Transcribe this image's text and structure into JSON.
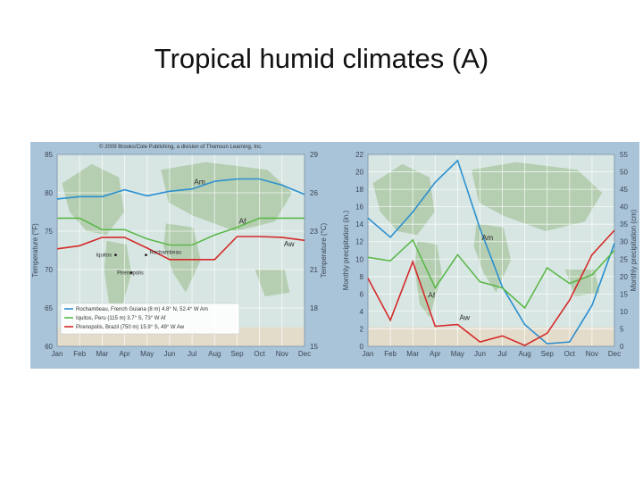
{
  "title": "Tropical humid climates (A)",
  "colors": {
    "am": "#2a8fd0",
    "af": "#5cb84a",
    "aw": "#d42a2a",
    "plot_bg": "#d7e6e3",
    "land": "#a9c6a0",
    "frame": "#a9c3d8"
  },
  "chart_data": [
    {
      "type": "line",
      "copyright": "© 2009 Brooks/Cole Publishing, a division of Thomson Learning, Inc.",
      "categories": [
        "Jan",
        "Feb",
        "Mar",
        "Apr",
        "May",
        "Jun",
        "Jul",
        "Aug",
        "Sep",
        "Oct",
        "Nov",
        "Dec"
      ],
      "ylabel": "Temperature (°F)",
      "y2label": "Temperature (°C)",
      "ylim": [
        60,
        85
      ],
      "yticks": [
        85,
        80,
        75,
        70,
        65,
        60
      ],
      "y2ticks": [
        29,
        26,
        23,
        21,
        18,
        15
      ],
      "grid": true,
      "legend_position": "bottom-left",
      "legend": [
        "Rochambeau, French Guiana (8 m) 4.8° N, 52.4° W Am",
        "Iquitos, Peru (115 m) 3.7° S, 73° W Af",
        "Pirenopolis, Brazil (750 m) 15.9° S, 49° W Aw"
      ],
      "place_labels": [
        "Rochambeau",
        "Iquitos",
        "Pirenopolis"
      ],
      "series": [
        {
          "name": "Am",
          "values": [
            79.2,
            79.5,
            79.5,
            80.4,
            79.6,
            80.2,
            80.5,
            81.5,
            81.8,
            81.8,
            81.0,
            79.8
          ]
        },
        {
          "name": "Af",
          "values": [
            76.7,
            76.7,
            75.2,
            75.2,
            74.0,
            73.2,
            73.2,
            74.5,
            75.5,
            76.7,
            76.7,
            76.7
          ]
        },
        {
          "name": "Aw",
          "values": [
            72.7,
            73.1,
            74.2,
            74.2,
            72.8,
            71.3,
            71.3,
            71.3,
            74.3,
            74.3,
            74.2,
            73.8
          ]
        }
      ]
    },
    {
      "type": "line",
      "categories": [
        "Jan",
        "Feb",
        "Mar",
        "Apr",
        "May",
        "Jun",
        "Jul",
        "Aug",
        "Sep",
        "Oct",
        "Nov",
        "Dec"
      ],
      "ylabel": "Monthly precipitation (in.)",
      "y2label": "Monthly precipitation (cm)",
      "ylim": [
        0,
        22
      ],
      "yticks": [
        22,
        20,
        18,
        16,
        14,
        12,
        10,
        8,
        6,
        4,
        2,
        0
      ],
      "y2ticks": [
        55,
        50,
        45,
        40,
        35,
        30,
        25,
        20,
        15,
        10,
        5,
        0
      ],
      "grid": true,
      "series": [
        {
          "name": "Am",
          "values": [
            14.7,
            12.5,
            15.4,
            18.8,
            21.3,
            13.5,
            6.8,
            2.5,
            0.3,
            0.5,
            4.7,
            11.8
          ]
        },
        {
          "name": "Af",
          "values": [
            10.2,
            9.8,
            12.2,
            6.7,
            10.5,
            7.4,
            6.7,
            4.4,
            9.0,
            7.2,
            8.2,
            11.0
          ]
        },
        {
          "name": "Aw",
          "values": [
            7.8,
            3.0,
            9.7,
            2.3,
            2.5,
            0.5,
            1.2,
            0.1,
            1.5,
            5.3,
            10.5,
            13.3
          ]
        }
      ]
    }
  ]
}
